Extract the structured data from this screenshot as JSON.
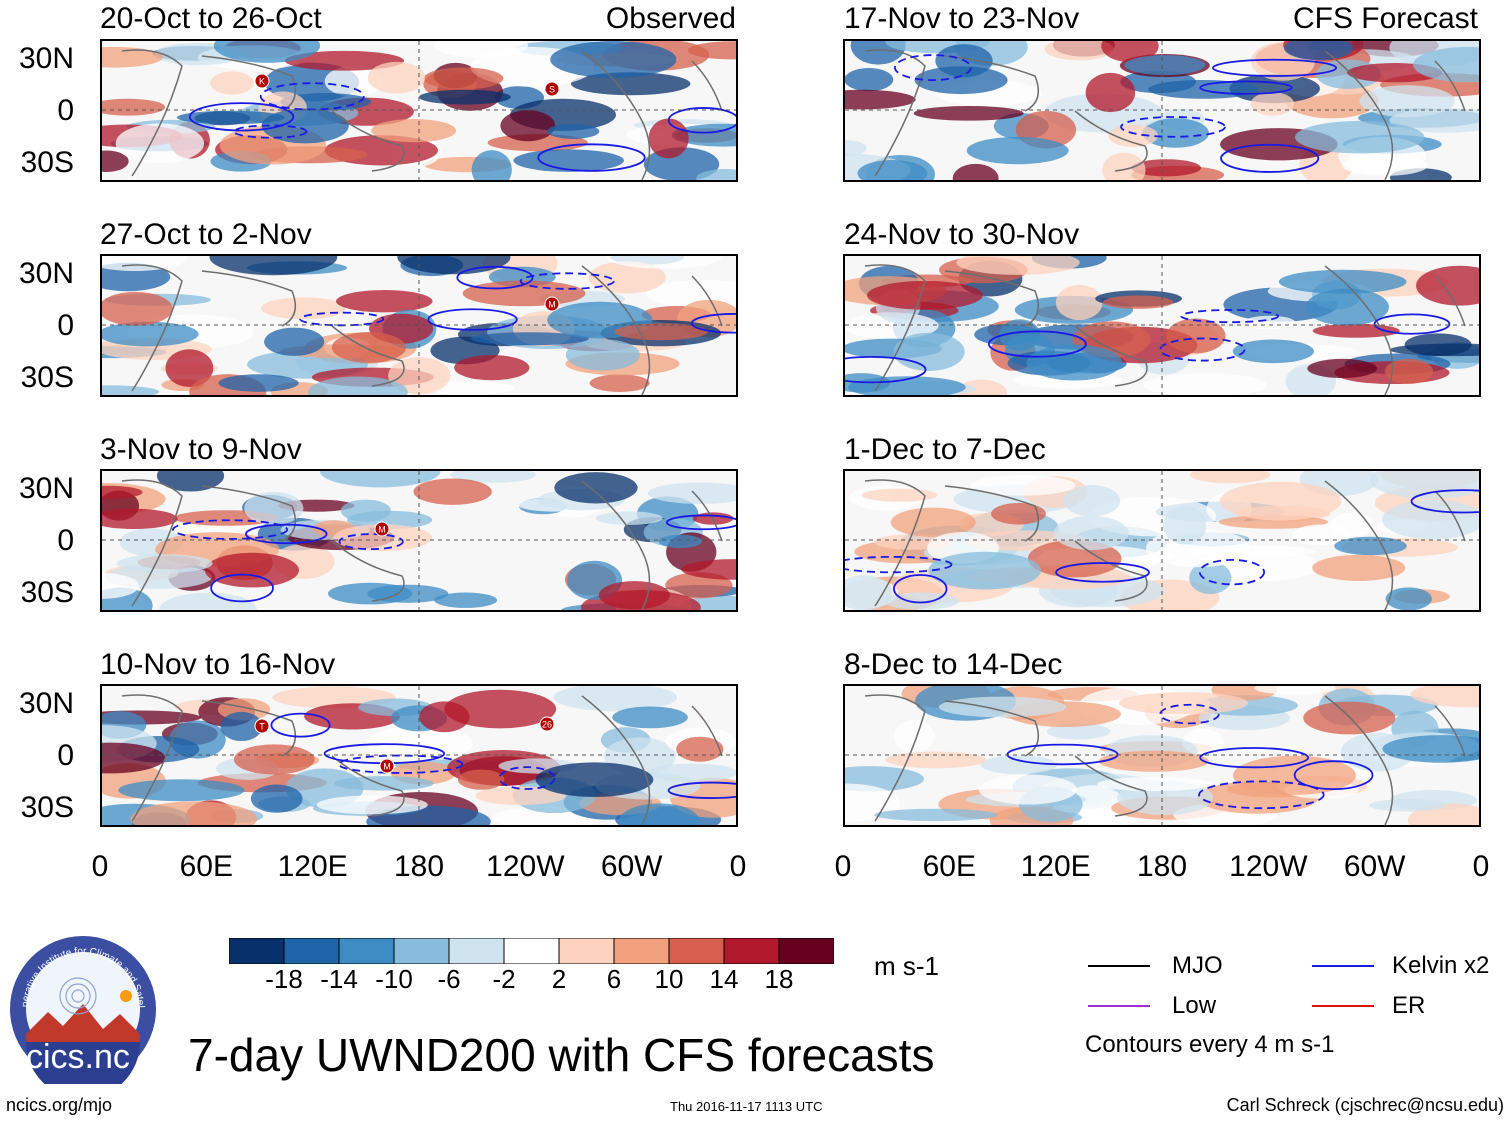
{
  "panel_labels": {
    "observed": "Observed",
    "forecast": "CFS Forecast"
  },
  "panels": [
    {
      "title": "20-Oct to 26-Oct",
      "kind": "observed",
      "storms": [
        "K",
        "S"
      ]
    },
    {
      "title": "27-Oct to 2-Nov",
      "kind": "observed",
      "storms": [
        "M"
      ]
    },
    {
      "title": "3-Nov to 9-Nov",
      "kind": "observed",
      "storms": [
        "M"
      ]
    },
    {
      "title": "10-Nov to 16-Nov",
      "kind": "observed",
      "storms": [
        "M",
        "26",
        "T"
      ]
    },
    {
      "title": "17-Nov to 23-Nov",
      "kind": "forecast",
      "storms": []
    },
    {
      "title": "24-Nov to 30-Nov",
      "kind": "forecast",
      "storms": []
    },
    {
      "title": "1-Dec to 7-Dec",
      "kind": "forecast",
      "storms": []
    },
    {
      "title": "8-Dec to 14-Dec",
      "kind": "forecast",
      "storms": []
    }
  ],
  "y_axis_labels": [
    "30N",
    "0",
    "30S"
  ],
  "x_axis_labels": [
    "0",
    "60E",
    "120E",
    "180",
    "120W",
    "60W",
    "0"
  ],
  "colorbar": {
    "ticks": [
      "-18",
      "-14",
      "-10",
      "-6",
      "-2",
      "2",
      "6",
      "10",
      "14",
      "18"
    ],
    "units": "m s-1",
    "colors": [
      "#08306b",
      "#1f63a8",
      "#3d8cc4",
      "#87bcdc",
      "#cfe3ef",
      "#ffffff",
      "#fdd3bf",
      "#f2a17e",
      "#d6604d",
      "#b2182b",
      "#67001f"
    ]
  },
  "legend": {
    "items": [
      {
        "label": "MJO",
        "color": "#000000"
      },
      {
        "label": "Kelvin x2",
        "color": "#1a1ae6"
      },
      {
        "label": "Low",
        "color": "#9b30d0"
      },
      {
        "label": "ER",
        "color": "#e01010"
      }
    ],
    "note": "Contours every 4 m s-1"
  },
  "logo_text": "cics.nc",
  "logo_ring_text": "Cooperative Institute for Climate and Satellites",
  "main_title": "7-day UWND200 with CFS forecasts",
  "footer": {
    "left": "ncics.org/mjo",
    "center": "Thu 2016-11-17 1113 UTC",
    "right": "Carl Schreck (cjschrec@ncsu.edu)"
  }
}
